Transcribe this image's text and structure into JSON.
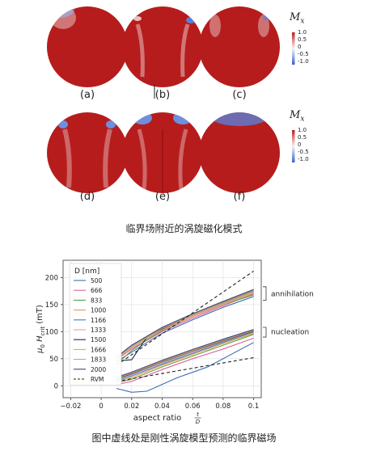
{
  "figure_top": {
    "panels": [
      "(a)",
      "(b)",
      "(c)",
      "(d)",
      "(e)",
      "(f)"
    ],
    "colorbar_title": "M",
    "colorbar_subscript": "x",
    "colorbar_ticks": [
      "1.0",
      "0.5",
      "0",
      "-0.5",
      "-1.0"
    ],
    "colors": {
      "positive": "#b71c1c",
      "zero": "#f2f2f2",
      "negative": "#3a5fcd"
    }
  },
  "caption_top": "临界场附近的涡旋磁化模式",
  "caption_bottom": "图中虚线处是刚性涡旋模型预测的临界磁场",
  "chart_data": {
    "type": "line",
    "xlabel": "aspect ratio",
    "xlabel_fraction_num": "t",
    "xlabel_fraction_den": "D",
    "ylabel_main": "μ",
    "ylabel_sub0": "0",
    "ylabel_H": "H",
    "ylabel_sub": "crit",
    "ylabel_unit": "(mT)",
    "xlim": [
      -0.025,
      0.105
    ],
    "ylim": [
      -22,
      232
    ],
    "xticks": [
      -0.02,
      0,
      0.02,
      0.04,
      0.06,
      0.08,
      0.1
    ],
    "xtick_labels": [
      "−0.02",
      "0",
      "0.02",
      "0.04",
      "0.06",
      "0.08",
      "0.1"
    ],
    "yticks": [
      0,
      50,
      100,
      150,
      200
    ],
    "ytick_labels": [
      "0",
      "50",
      "100",
      "150",
      "200"
    ],
    "grid": true,
    "legend_title": "D [nm]",
    "legend_position": "upper-left",
    "annotations": {
      "upper": "annihilation",
      "lower": "nucleation"
    },
    "series": [
      {
        "name": "500",
        "color": "#3b6db3",
        "annihilation": {
          "x": [
            0.01,
            0.02,
            0.03,
            0.04,
            0.06,
            0.08,
            0.1
          ],
          "y": [
            45,
            62,
            80,
            97,
            122,
            145,
            165
          ]
        },
        "nucleation": {
          "x": [
            0.01,
            0.02,
            0.03,
            0.05,
            0.07,
            0.1
          ],
          "y": [
            -5,
            -12,
            -10,
            15,
            35,
            80
          ]
        }
      },
      {
        "name": "666",
        "color": "#e3609b",
        "annihilation": {
          "x": [
            0.01,
            0.02,
            0.04,
            0.06,
            0.08,
            0.1
          ],
          "y": [
            48,
            68,
            100,
            125,
            148,
            170
          ]
        },
        "nucleation": {
          "x": [
            0.01,
            0.02,
            0.04,
            0.06,
            0.08,
            0.1
          ],
          "y": [
            2,
            8,
            30,
            50,
            68,
            88
          ]
        }
      },
      {
        "name": "833",
        "color": "#5a9e3b",
        "annihilation": {
          "x": [
            0.01,
            0.02,
            0.03,
            0.04,
            0.06,
            0.08,
            0.1
          ],
          "y": [
            40,
            65,
            85,
            102,
            128,
            150,
            168
          ]
        },
        "nucleation": {
          "x": [
            0.01,
            0.02,
            0.04,
            0.06,
            0.08,
            0.1
          ],
          "y": [
            5,
            12,
            35,
            55,
            75,
            95
          ]
        }
      },
      {
        "name": "1000",
        "color": "#e89c3c",
        "annihilation": {
          "x": [
            0.01,
            0.02,
            0.04,
            0.06,
            0.08,
            0.1
          ],
          "y": [
            50,
            70,
            103,
            128,
            150,
            172
          ]
        },
        "nucleation": {
          "x": [
            0.01,
            0.02,
            0.04,
            0.06,
            0.08,
            0.1
          ],
          "y": [
            8,
            15,
            38,
            58,
            78,
            97
          ]
        }
      },
      {
        "name": "1166",
        "color": "#3a7fc4",
        "annihilation": {
          "x": [
            0.01,
            0.02,
            0.04,
            0.06,
            0.08,
            0.1
          ],
          "y": [
            52,
            72,
            105,
            130,
            152,
            174
          ]
        },
        "nucleation": {
          "x": [
            0.01,
            0.02,
            0.04,
            0.06,
            0.08,
            0.1
          ],
          "y": [
            10,
            18,
            40,
            60,
            80,
            99
          ]
        }
      },
      {
        "name": "1333",
        "color": "#d9a0c0",
        "annihilation": {
          "x": [
            0.01,
            0.02,
            0.04,
            0.06,
            0.08,
            0.1
          ],
          "y": [
            50,
            70,
            104,
            129,
            151,
            173
          ]
        },
        "nucleation": {
          "x": [
            0.01,
            0.02,
            0.04,
            0.06,
            0.08,
            0.1
          ],
          "y": [
            12,
            20,
            42,
            62,
            82,
            100
          ]
        }
      },
      {
        "name": "1500",
        "color": "#1e2b46",
        "annihilation": {
          "x": [
            0.01,
            0.02,
            0.03,
            0.04,
            0.06,
            0.08,
            0.1
          ],
          "y": [
            46,
            48,
            90,
            105,
            132,
            154,
            176
          ]
        },
        "nucleation": {
          "x": [
            0.01,
            0.02,
            0.04,
            0.06,
            0.08,
            0.1
          ],
          "y": [
            13,
            22,
            44,
            64,
            83,
            101
          ]
        }
      },
      {
        "name": "1666",
        "color": "#c9b54a",
        "annihilation": {
          "x": [
            0.01,
            0.02,
            0.04,
            0.06,
            0.08,
            0.1
          ],
          "y": [
            50,
            72,
            106,
            131,
            153,
            175
          ]
        },
        "nucleation": {
          "x": [
            0.01,
            0.02,
            0.04,
            0.06,
            0.08,
            0.1
          ],
          "y": [
            14,
            23,
            45,
            65,
            84,
            102
          ]
        }
      },
      {
        "name": "1833",
        "color": "#e88a88",
        "annihilation": {
          "x": [
            0.01,
            0.02,
            0.04,
            0.06,
            0.08,
            0.1
          ],
          "y": [
            52,
            74,
            107,
            132,
            155,
            177
          ]
        },
        "nucleation": {
          "x": [
            0.01,
            0.02,
            0.04,
            0.06,
            0.08,
            0.1
          ],
          "y": [
            15,
            24,
            46,
            66,
            85,
            103
          ]
        }
      },
      {
        "name": "2000",
        "color": "#2f4f7a",
        "annihilation": {
          "x": [
            0.01,
            0.02,
            0.04,
            0.06,
            0.08,
            0.1
          ],
          "y": [
            53,
            75,
            108,
            133,
            156,
            178
          ]
        },
        "nucleation": {
          "x": [
            0.01,
            0.02,
            0.04,
            0.06,
            0.08,
            0.1
          ],
          "y": [
            16,
            25,
            47,
            67,
            86,
            104
          ]
        }
      },
      {
        "name": "RVM",
        "color": "#222222",
        "dashed": true,
        "annihilation": {
          "x": [
            0.01,
            0.1
          ],
          "y": [
            38,
            212
          ]
        },
        "nucleation": {
          "x": [
            0.01,
            0.1
          ],
          "y": [
            8,
            52
          ]
        }
      }
    ]
  }
}
